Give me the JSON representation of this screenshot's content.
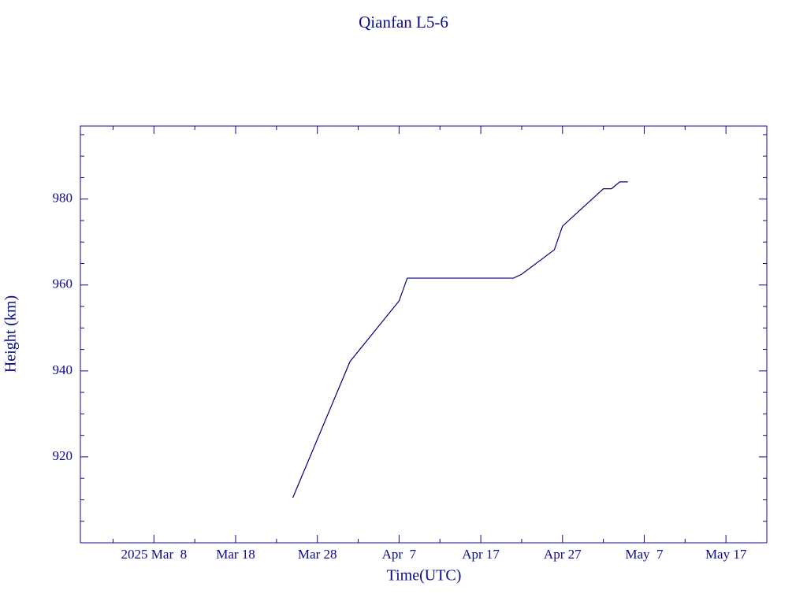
{
  "chart_data": {
    "type": "line",
    "title": "Qianfan L5-6",
    "xlabel": "Time(UTC)",
    "ylabel": "Height (km)",
    "color": "#000080",
    "x": [
      "2025-03-25",
      "2025-04-01",
      "2025-04-07",
      "2025-04-08",
      "2025-04-21",
      "2025-04-22",
      "2025-04-26",
      "2025-04-27",
      "2025-05-02",
      "2025-05-03",
      "2025-05-04",
      "2025-05-05"
    ],
    "values": [
      910.5,
      942.2,
      956.3,
      961.6,
      961.6,
      962.5,
      968.2,
      973.7,
      982.4,
      982.4,
      984.0,
      984.0
    ],
    "xlim": [
      "2025-02-27",
      "2025-05-22"
    ],
    "xticks": [
      {
        "value": "2025-03-08",
        "label": "2025 Mar  8"
      },
      {
        "value": "2025-03-18",
        "label": "Mar 18"
      },
      {
        "value": "2025-03-28",
        "label": "Mar 28"
      },
      {
        "value": "2025-04-07",
        "label": "Apr  7"
      },
      {
        "value": "2025-04-17",
        "label": "Apr 17"
      },
      {
        "value": "2025-04-27",
        "label": "Apr 27"
      },
      {
        "value": "2025-05-07",
        "label": "May  7"
      },
      {
        "value": "2025-05-17",
        "label": "May 17"
      }
    ],
    "x_minor_ticks": [
      "2025-03-03",
      "2025-03-13",
      "2025-03-23",
      "2025-04-02",
      "2025-04-12",
      "2025-04-22",
      "2025-05-02",
      "2025-05-12",
      "2025-05-22"
    ],
    "ylim": [
      900,
      997
    ],
    "yticks": [
      920,
      940,
      960,
      980
    ],
    "y_minor_ticks": [
      905,
      910,
      915,
      925,
      930,
      935,
      945,
      950,
      955,
      965,
      970,
      975,
      985,
      990,
      995
    ]
  }
}
